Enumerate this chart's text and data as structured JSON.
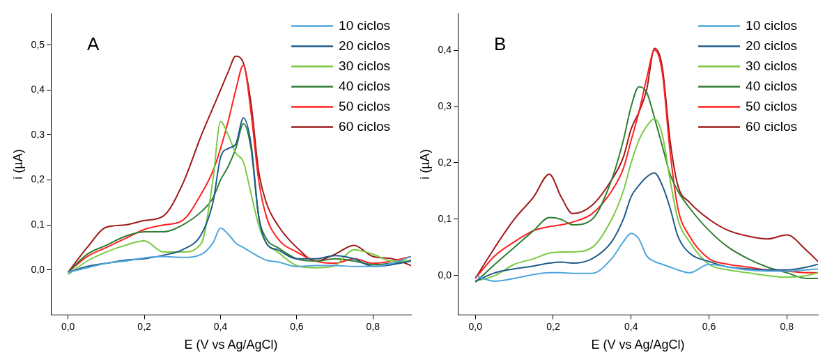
{
  "chart_data": [
    {
      "type": "line",
      "title": "A",
      "xlabel": "E (V vs Ag/AgCl)",
      "ylabel": "i (µA)",
      "legend": "top right",
      "grid": false,
      "marker": "none",
      "line_style": "solid",
      "xlim": [
        -0.045,
        0.9
      ],
      "ylim": [
        -0.1,
        0.57
      ],
      "xticks": [
        {
          "value": 0,
          "label": "0,0"
        },
        {
          "value": 0.2,
          "label": "0,2"
        },
        {
          "value": 0.4,
          "label": "0,4"
        },
        {
          "value": 0.6,
          "label": "0,6"
        },
        {
          "value": 0.8,
          "label": "0,8"
        }
      ],
      "yticks": [
        {
          "value": 0,
          "label": "0,0"
        },
        {
          "value": 0.1,
          "label": "0,1"
        },
        {
          "value": 0.2,
          "label": "0,2"
        },
        {
          "value": 0.3,
          "label": "0,3"
        },
        {
          "value": 0.4,
          "label": "0,4"
        },
        {
          "value": 0.5,
          "label": "0,5"
        }
      ],
      "x": [
        0,
        0.05,
        0.1,
        0.15,
        0.2,
        0.25,
        0.3,
        0.35,
        0.38,
        0.4,
        0.42,
        0.44,
        0.46,
        0.48,
        0.5,
        0.52,
        0.55,
        0.6,
        0.65,
        0.7,
        0.75,
        0.8,
        0.85,
        0.9
      ],
      "series": [
        {
          "name": "10 ciclos",
          "color": "#4ea6dc",
          "values": [
            -0.005,
            0.005,
            0.015,
            0.02,
            0.027,
            0.03,
            0.028,
            0.035,
            0.06,
            0.093,
            0.08,
            0.06,
            0.05,
            0.04,
            0.03,
            0.022,
            0.018,
            0.008,
            0.01,
            0.01,
            0.008,
            0.008,
            0.015,
            0.03
          ]
        },
        {
          "name": "20 ciclos",
          "color": "#1f5a8a",
          "values": [
            -0.005,
            0.008,
            0.015,
            0.022,
            0.025,
            0.033,
            0.045,
            0.08,
            0.15,
            0.25,
            0.27,
            0.28,
            0.338,
            0.28,
            0.12,
            0.06,
            0.045,
            0.025,
            0.025,
            0.032,
            0.025,
            0.008,
            0.012,
            0.02
          ]
        },
        {
          "name": "30 ciclos",
          "color": "#7ac943",
          "values": [
            -0.01,
            0.02,
            0.04,
            0.055,
            0.065,
            0.04,
            0.04,
            0.06,
            0.2,
            0.33,
            0.3,
            0.26,
            0.24,
            0.17,
            0.1,
            0.06,
            0.04,
            0.01,
            0.005,
            0.01,
            0.045,
            0.035,
            0.02,
            0.02
          ]
        },
        {
          "name": "40 ciclos",
          "color": "#2e7d32",
          "values": [
            -0.005,
            0.035,
            0.055,
            0.075,
            0.085,
            0.085,
            0.1,
            0.13,
            0.16,
            0.2,
            0.23,
            0.27,
            0.325,
            0.27,
            0.12,
            0.07,
            0.05,
            0.025,
            0.02,
            0.025,
            0.02,
            0.012,
            0.015,
            0.022
          ]
        },
        {
          "name": "50 ciclos",
          "color": "#ff2020",
          "values": [
            -0.005,
            0.03,
            0.05,
            0.07,
            0.09,
            0.1,
            0.11,
            0.17,
            0.22,
            0.27,
            0.33,
            0.4,
            0.455,
            0.35,
            0.2,
            0.12,
            0.07,
            0.04,
            0.02,
            0.015,
            0.025,
            0.015,
            0.02,
            0.03
          ]
        },
        {
          "name": "60 ciclos",
          "color": "#a01818",
          "values": [
            -0.005,
            0.05,
            0.095,
            0.1,
            0.11,
            0.12,
            0.19,
            0.3,
            0.36,
            0.4,
            0.44,
            0.475,
            0.46,
            0.37,
            0.22,
            0.15,
            0.1,
            0.05,
            0.02,
            0.035,
            0.055,
            0.03,
            0.025,
            0.01
          ]
        }
      ]
    },
    {
      "type": "line",
      "title": "B",
      "xlabel": "E (V vs Ag/AgCl)",
      "ylabel": "i (µA)",
      "legend": "top right",
      "grid": false,
      "marker": "none",
      "line_style": "solid",
      "xlim": [
        -0.045,
        0.88
      ],
      "ylim": [
        -0.07,
        0.465
      ],
      "xticks": [
        {
          "value": 0,
          "label": "0,0"
        },
        {
          "value": 0.2,
          "label": "0,2"
        },
        {
          "value": 0.4,
          "label": "0,4"
        },
        {
          "value": 0.6,
          "label": "0,6"
        },
        {
          "value": 0.8,
          "label": "0,8"
        }
      ],
      "yticks": [
        {
          "value": 0,
          "label": "0,0"
        },
        {
          "value": 0.1,
          "label": "0,1"
        },
        {
          "value": 0.2,
          "label": "0,2"
        },
        {
          "value": 0.3,
          "label": "0,3"
        },
        {
          "value": 0.4,
          "label": "0,4"
        }
      ],
      "x": [
        0,
        0.05,
        0.1,
        0.15,
        0.19,
        0.22,
        0.25,
        0.3,
        0.35,
        0.38,
        0.4,
        0.42,
        0.44,
        0.46,
        0.48,
        0.5,
        0.52,
        0.55,
        0.6,
        0.65,
        0.7,
        0.75,
        0.8,
        0.85,
        0.88
      ],
      "series": [
        {
          "name": "10 ciclos",
          "color": "#4ea6dc",
          "values": [
            0,
            -0.01,
            -0.005,
            0.002,
            0.005,
            0.005,
            0.004,
            0.004,
            0.03,
            0.06,
            0.075,
            0.065,
            0.035,
            0.025,
            0.02,
            0.015,
            0.01,
            0.005,
            0.02,
            0.015,
            0.01,
            0.008,
            0.008,
            0.01,
            0.012
          ]
        },
        {
          "name": "20 ciclos",
          "color": "#1f5a8a",
          "values": [
            -0.01,
            0.005,
            0.012,
            0.017,
            0.022,
            0.024,
            0.022,
            0.03,
            0.06,
            0.1,
            0.14,
            0.16,
            0.175,
            0.182,
            0.16,
            0.12,
            0.07,
            0.04,
            0.025,
            0.015,
            0.012,
            0.01,
            0.01,
            0.015,
            0.02
          ]
        },
        {
          "name": "30 ciclos",
          "color": "#7ac943",
          "values": [
            -0.01,
            0,
            0.02,
            0.03,
            0.04,
            0.042,
            0.042,
            0.05,
            0.1,
            0.15,
            0.2,
            0.24,
            0.265,
            0.278,
            0.25,
            0.17,
            0.1,
            0.06,
            0.02,
            0.01,
            0.005,
            0,
            -0.003,
            0,
            0.005
          ]
        },
        {
          "name": "40 ciclos",
          "color": "#2e7d32",
          "values": [
            -0.012,
            0.02,
            0.05,
            0.08,
            0.103,
            0.1,
            0.09,
            0.1,
            0.17,
            0.24,
            0.3,
            0.335,
            0.325,
            0.28,
            0.23,
            0.18,
            0.15,
            0.12,
            0.08,
            0.05,
            0.03,
            0.015,
            0.005,
            -0.005,
            -0.005
          ]
        },
        {
          "name": "50 ciclos",
          "color": "#ff2020",
          "values": [
            -0.005,
            0.035,
            0.06,
            0.08,
            0.087,
            0.09,
            0.095,
            0.11,
            0.15,
            0.19,
            0.24,
            0.29,
            0.35,
            0.4,
            0.36,
            0.22,
            0.12,
            0.07,
            0.03,
            0.02,
            0.015,
            0.01,
            0.008,
            0.005,
            0.005
          ]
        },
        {
          "name": "60 ciclos",
          "color": "#a01818",
          "values": [
            -0.005,
            0.05,
            0.1,
            0.14,
            0.18,
            0.14,
            0.11,
            0.125,
            0.17,
            0.21,
            0.26,
            0.29,
            0.33,
            0.403,
            0.37,
            0.24,
            0.16,
            0.13,
            0.1,
            0.08,
            0.07,
            0.065,
            0.072,
            0.045,
            0.025
          ]
        }
      ]
    }
  ]
}
